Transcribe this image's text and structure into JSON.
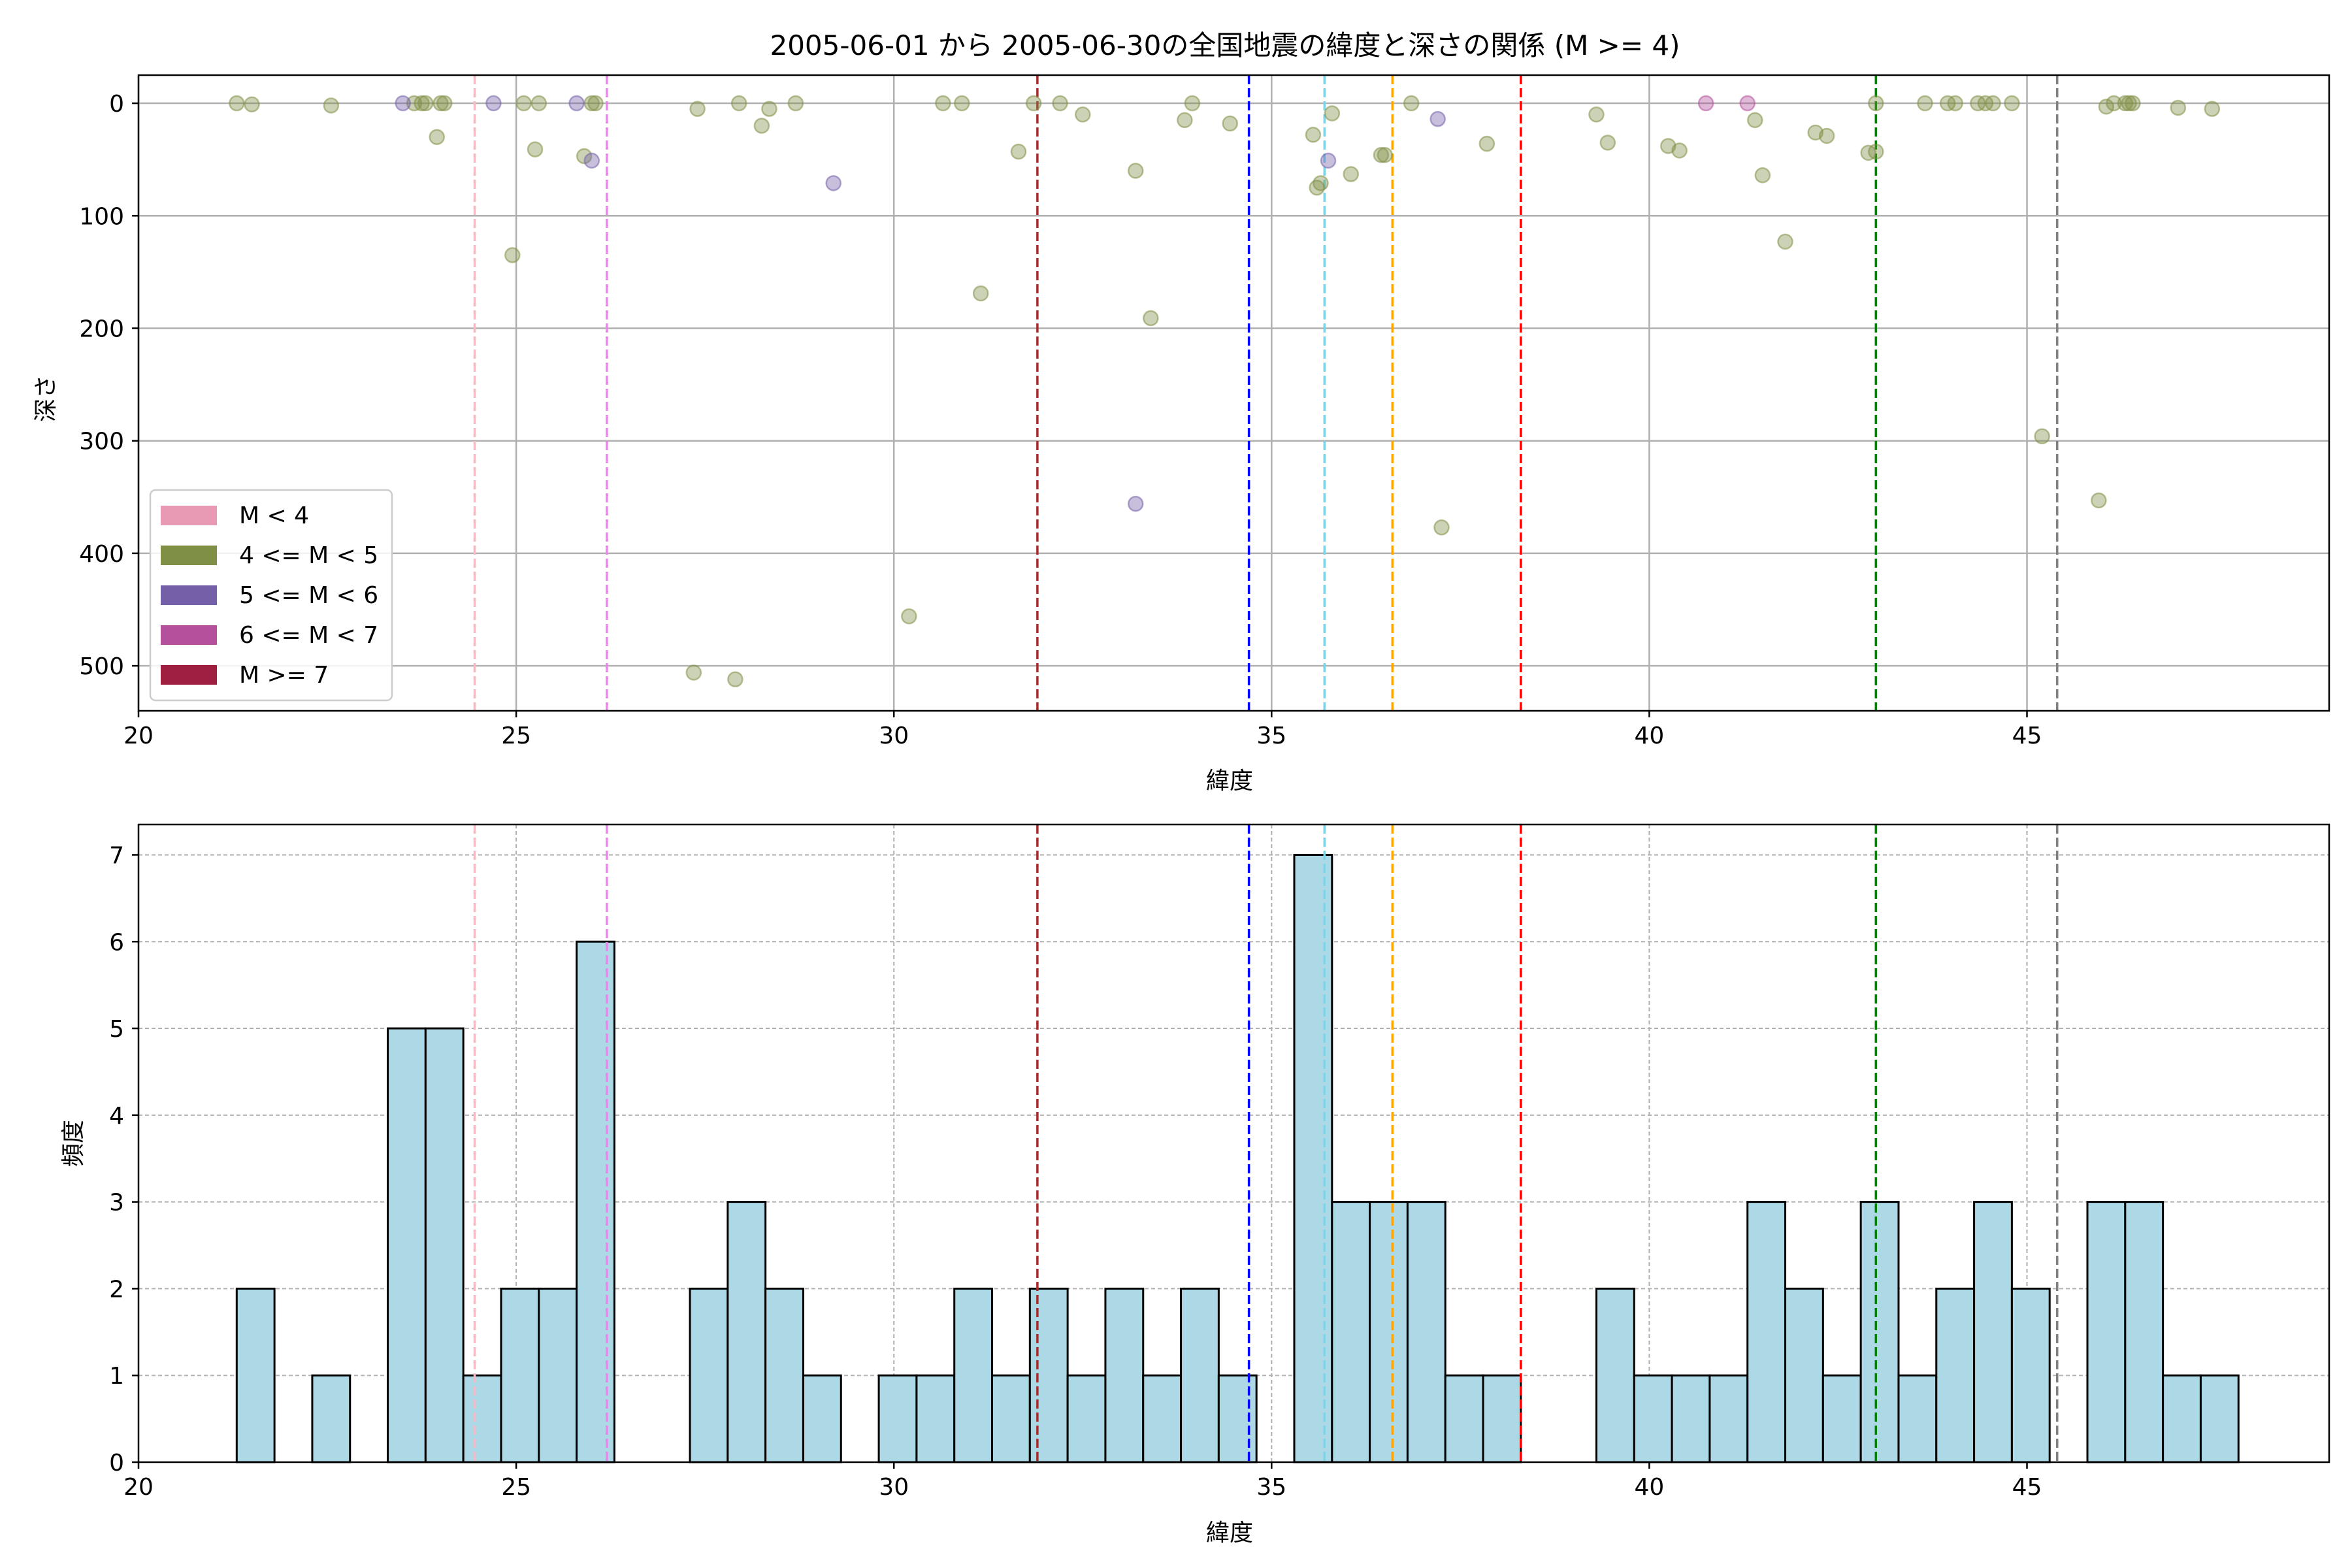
{
  "colors": {
    "M<4": "#e89ab4",
    "4<=M<5": "#7f8f45",
    "5<=M<6": "#7460a8",
    "6<=M<7": "#b5509d",
    "M>=7": "#9e1f3f",
    "hist_fill": "#add8e6"
  },
  "chart_data": [
    {
      "type": "scatter",
      "title": "2005-06-01 から 2005-06-30の全国地震の緯度と深さの関係 (M >= 4)",
      "xlabel": "緯度",
      "ylabel": "深さ",
      "xlim": [
        20,
        49
      ],
      "ylim": [
        540,
        -25
      ],
      "y_inverted": true,
      "grid": true,
      "xticks": [
        20,
        25,
        30,
        35,
        40,
        45
      ],
      "yticks": [
        0,
        100,
        200,
        300,
        400,
        500
      ],
      "legend": {
        "placement": "lower-left",
        "entries": [
          {
            "label": "M < 4",
            "class": "M<4"
          },
          {
            "label": "4 <= M < 5",
            "class": "4<=M<5"
          },
          {
            "label": "5 <= M < 6",
            "class": "5<=M<6"
          },
          {
            "label": "6 <= M < 7",
            "class": "6<=M<7"
          },
          {
            "label": "M >= 7",
            "class": "M>=7"
          }
        ]
      },
      "vlines": [
        {
          "x": 24.45,
          "color": "#ffb6c1"
        },
        {
          "x": 26.2,
          "color": "#ee82ee"
        },
        {
          "x": 31.9,
          "color": "#a52a2a"
        },
        {
          "x": 34.7,
          "color": "#0000ff"
        },
        {
          "x": 35.7,
          "color": "#7fd4e8"
        },
        {
          "x": 36.6,
          "color": "#ffa500"
        },
        {
          "x": 38.3,
          "color": "#ff0000"
        },
        {
          "x": 43.0,
          "color": "#008000"
        },
        {
          "x": 45.4,
          "color": "#808080"
        }
      ],
      "series": [
        {
          "class": "4<=M<5",
          "points": [
            [
              21.3,
              0
            ],
            [
              21.5,
              1
            ],
            [
              22.55,
              2
            ],
            [
              23.65,
              0
            ],
            [
              23.75,
              0
            ],
            [
              23.8,
              0
            ],
            [
              24.0,
              0
            ],
            [
              24.05,
              0
            ],
            [
              23.95,
              30
            ],
            [
              24.95,
              135
            ],
            [
              25.1,
              0
            ],
            [
              25.3,
              0
            ],
            [
              25.25,
              41
            ],
            [
              25.9,
              47
            ],
            [
              26.0,
              0
            ],
            [
              26.05,
              0
            ],
            [
              27.4,
              5
            ],
            [
              27.35,
              506
            ],
            [
              27.95,
              0
            ],
            [
              27.9,
              512
            ],
            [
              28.25,
              20
            ],
            [
              28.35,
              5
            ],
            [
              28.7,
              0
            ],
            [
              30.2,
              456
            ],
            [
              30.65,
              0
            ],
            [
              30.9,
              0
            ],
            [
              31.15,
              169
            ],
            [
              31.65,
              43
            ],
            [
              31.85,
              0
            ],
            [
              32.2,
              0
            ],
            [
              32.5,
              10
            ],
            [
              33.2,
              60
            ],
            [
              33.4,
              191
            ],
            [
              33.85,
              15
            ],
            [
              33.95,
              0
            ],
            [
              34.45,
              18
            ],
            [
              35.55,
              28
            ],
            [
              35.6,
              75
            ],
            [
              35.65,
              71
            ],
            [
              35.8,
              9
            ],
            [
              36.05,
              63
            ],
            [
              36.45,
              46
            ],
            [
              36.5,
              46
            ],
            [
              36.85,
              0
            ],
            [
              37.25,
              377
            ],
            [
              37.85,
              36
            ],
            [
              39.3,
              10
            ],
            [
              39.45,
              35
            ],
            [
              40.25,
              38
            ],
            [
              40.4,
              42
            ],
            [
              41.4,
              15
            ],
            [
              41.5,
              64
            ],
            [
              41.8,
              123
            ],
            [
              42.2,
              26
            ],
            [
              42.35,
              29
            ],
            [
              42.9,
              44
            ],
            [
              43.0,
              43
            ],
            [
              43.0,
              0
            ],
            [
              43.65,
              0
            ],
            [
              43.95,
              0
            ],
            [
              44.05,
              0
            ],
            [
              44.35,
              0
            ],
            [
              44.45,
              0
            ],
            [
              44.55,
              0
            ],
            [
              44.8,
              0
            ],
            [
              45.2,
              296
            ],
            [
              45.95,
              353
            ],
            [
              46.05,
              3
            ],
            [
              46.15,
              0
            ],
            [
              46.3,
              0
            ],
            [
              46.35,
              0
            ],
            [
              46.4,
              0
            ],
            [
              47.0,
              4
            ],
            [
              47.45,
              5
            ]
          ]
        },
        {
          "class": "5<=M<6",
          "points": [
            [
              23.5,
              0
            ],
            [
              24.7,
              0
            ],
            [
              25.8,
              0
            ],
            [
              26.0,
              51
            ],
            [
              29.2,
              71
            ],
            [
              33.2,
              356
            ],
            [
              35.75,
              51
            ],
            [
              37.2,
              14
            ]
          ]
        },
        {
          "class": "6<=M<7",
          "points": [
            [
              40.75,
              0
            ],
            [
              41.3,
              0
            ]
          ]
        }
      ]
    },
    {
      "type": "bar",
      "xlabel": "緯度",
      "ylabel": "頻度",
      "xlim": [
        20,
        49
      ],
      "ylim": [
        0,
        7.35
      ],
      "grid": true,
      "xticks": [
        20,
        25,
        30,
        35,
        40,
        45
      ],
      "yticks": [
        0,
        1,
        2,
        3,
        4,
        5,
        6,
        7
      ],
      "bin_start": 21.3,
      "bin_width": 0.5,
      "values": [
        2,
        0,
        1,
        0,
        5,
        5,
        1,
        2,
        2,
        6,
        0,
        0,
        2,
        3,
        2,
        1,
        0,
        1,
        1,
        2,
        1,
        2,
        1,
        2,
        1,
        2,
        1,
        0,
        7,
        3,
        3,
        3,
        1,
        1,
        0,
        0,
        2,
        1,
        1,
        1,
        3,
        2,
        1,
        3,
        1,
        2,
        3,
        2,
        0,
        3,
        3,
        1,
        1
      ],
      "vlines": [
        {
          "x": 24.45,
          "color": "#ffb6c1"
        },
        {
          "x": 26.2,
          "color": "#ee82ee"
        },
        {
          "x": 31.9,
          "color": "#a52a2a"
        },
        {
          "x": 34.7,
          "color": "#0000ff"
        },
        {
          "x": 35.7,
          "color": "#7fd4e8"
        },
        {
          "x": 36.6,
          "color": "#ffa500"
        },
        {
          "x": 38.3,
          "color": "#ff0000"
        },
        {
          "x": 43.0,
          "color": "#008000"
        },
        {
          "x": 45.4,
          "color": "#808080"
        }
      ]
    }
  ]
}
